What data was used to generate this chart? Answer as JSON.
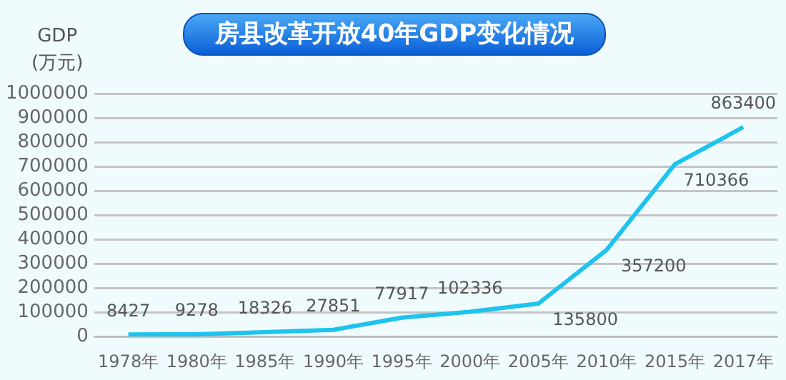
{
  "chart_data": {
    "type": "line",
    "title": "房县改革开放40年GDP变化情况",
    "ylabel": "GDP\n(万元)",
    "categories": [
      "1978年",
      "1980年",
      "1985年",
      "1990年",
      "1995年",
      "2000年",
      "2005年",
      "2010年",
      "2015年",
      "2017年"
    ],
    "series": [
      {
        "color": "#1ec3ee",
        "values": [
          8427,
          9278,
          18326,
          27851,
          77917,
          102336,
          135800,
          357200,
          710366,
          863400
        ]
      }
    ],
    "ylim": [
      0,
      1000000
    ],
    "yticks": [
      0,
      100000,
      200000,
      300000,
      400000,
      500000,
      600000,
      700000,
      800000,
      900000,
      1000000
    ],
    "grid": "y",
    "legend": false,
    "marker": "none",
    "line_style": "solid",
    "data_labels": true
  }
}
